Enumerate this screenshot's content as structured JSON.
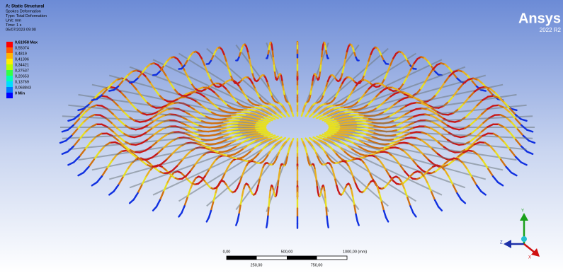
{
  "header": {
    "title": "A: Static Structural",
    "lines": [
      "Spokes Deformation",
      "Type: Total Deformation",
      "Unit: mm",
      "Time: 1 s",
      "05/07/2023 09:00"
    ]
  },
  "legend": {
    "items": [
      {
        "label": "0,61958 Max",
        "color": "#ff0000"
      },
      {
        "label": "0,55074",
        "color": "#ff5a00"
      },
      {
        "label": "0,4819",
        "color": "#ffb400"
      },
      {
        "label": "0,41306",
        "color": "#ffee00"
      },
      {
        "label": "0,34421",
        "color": "#b4ff00"
      },
      {
        "label": "0,27537",
        "color": "#33ff44"
      },
      {
        "label": "0,20653",
        "color": "#00ffb4"
      },
      {
        "label": "0,13769",
        "color": "#00dcff"
      },
      {
        "label": "0,068843",
        "color": "#0078ff"
      },
      {
        "label": "0 Min",
        "color": "#0000ff"
      }
    ]
  },
  "logo": {
    "name": "Ansys",
    "version": "2022 R2"
  },
  "scale_bar": {
    "top_labels": [
      "0,00",
      "500,00",
      "1000,00 (mm)"
    ],
    "bottom_labels": [
      "250,00",
      "750,00"
    ]
  },
  "triad": {
    "y": "Y",
    "z": "Z",
    "x": "X"
  }
}
